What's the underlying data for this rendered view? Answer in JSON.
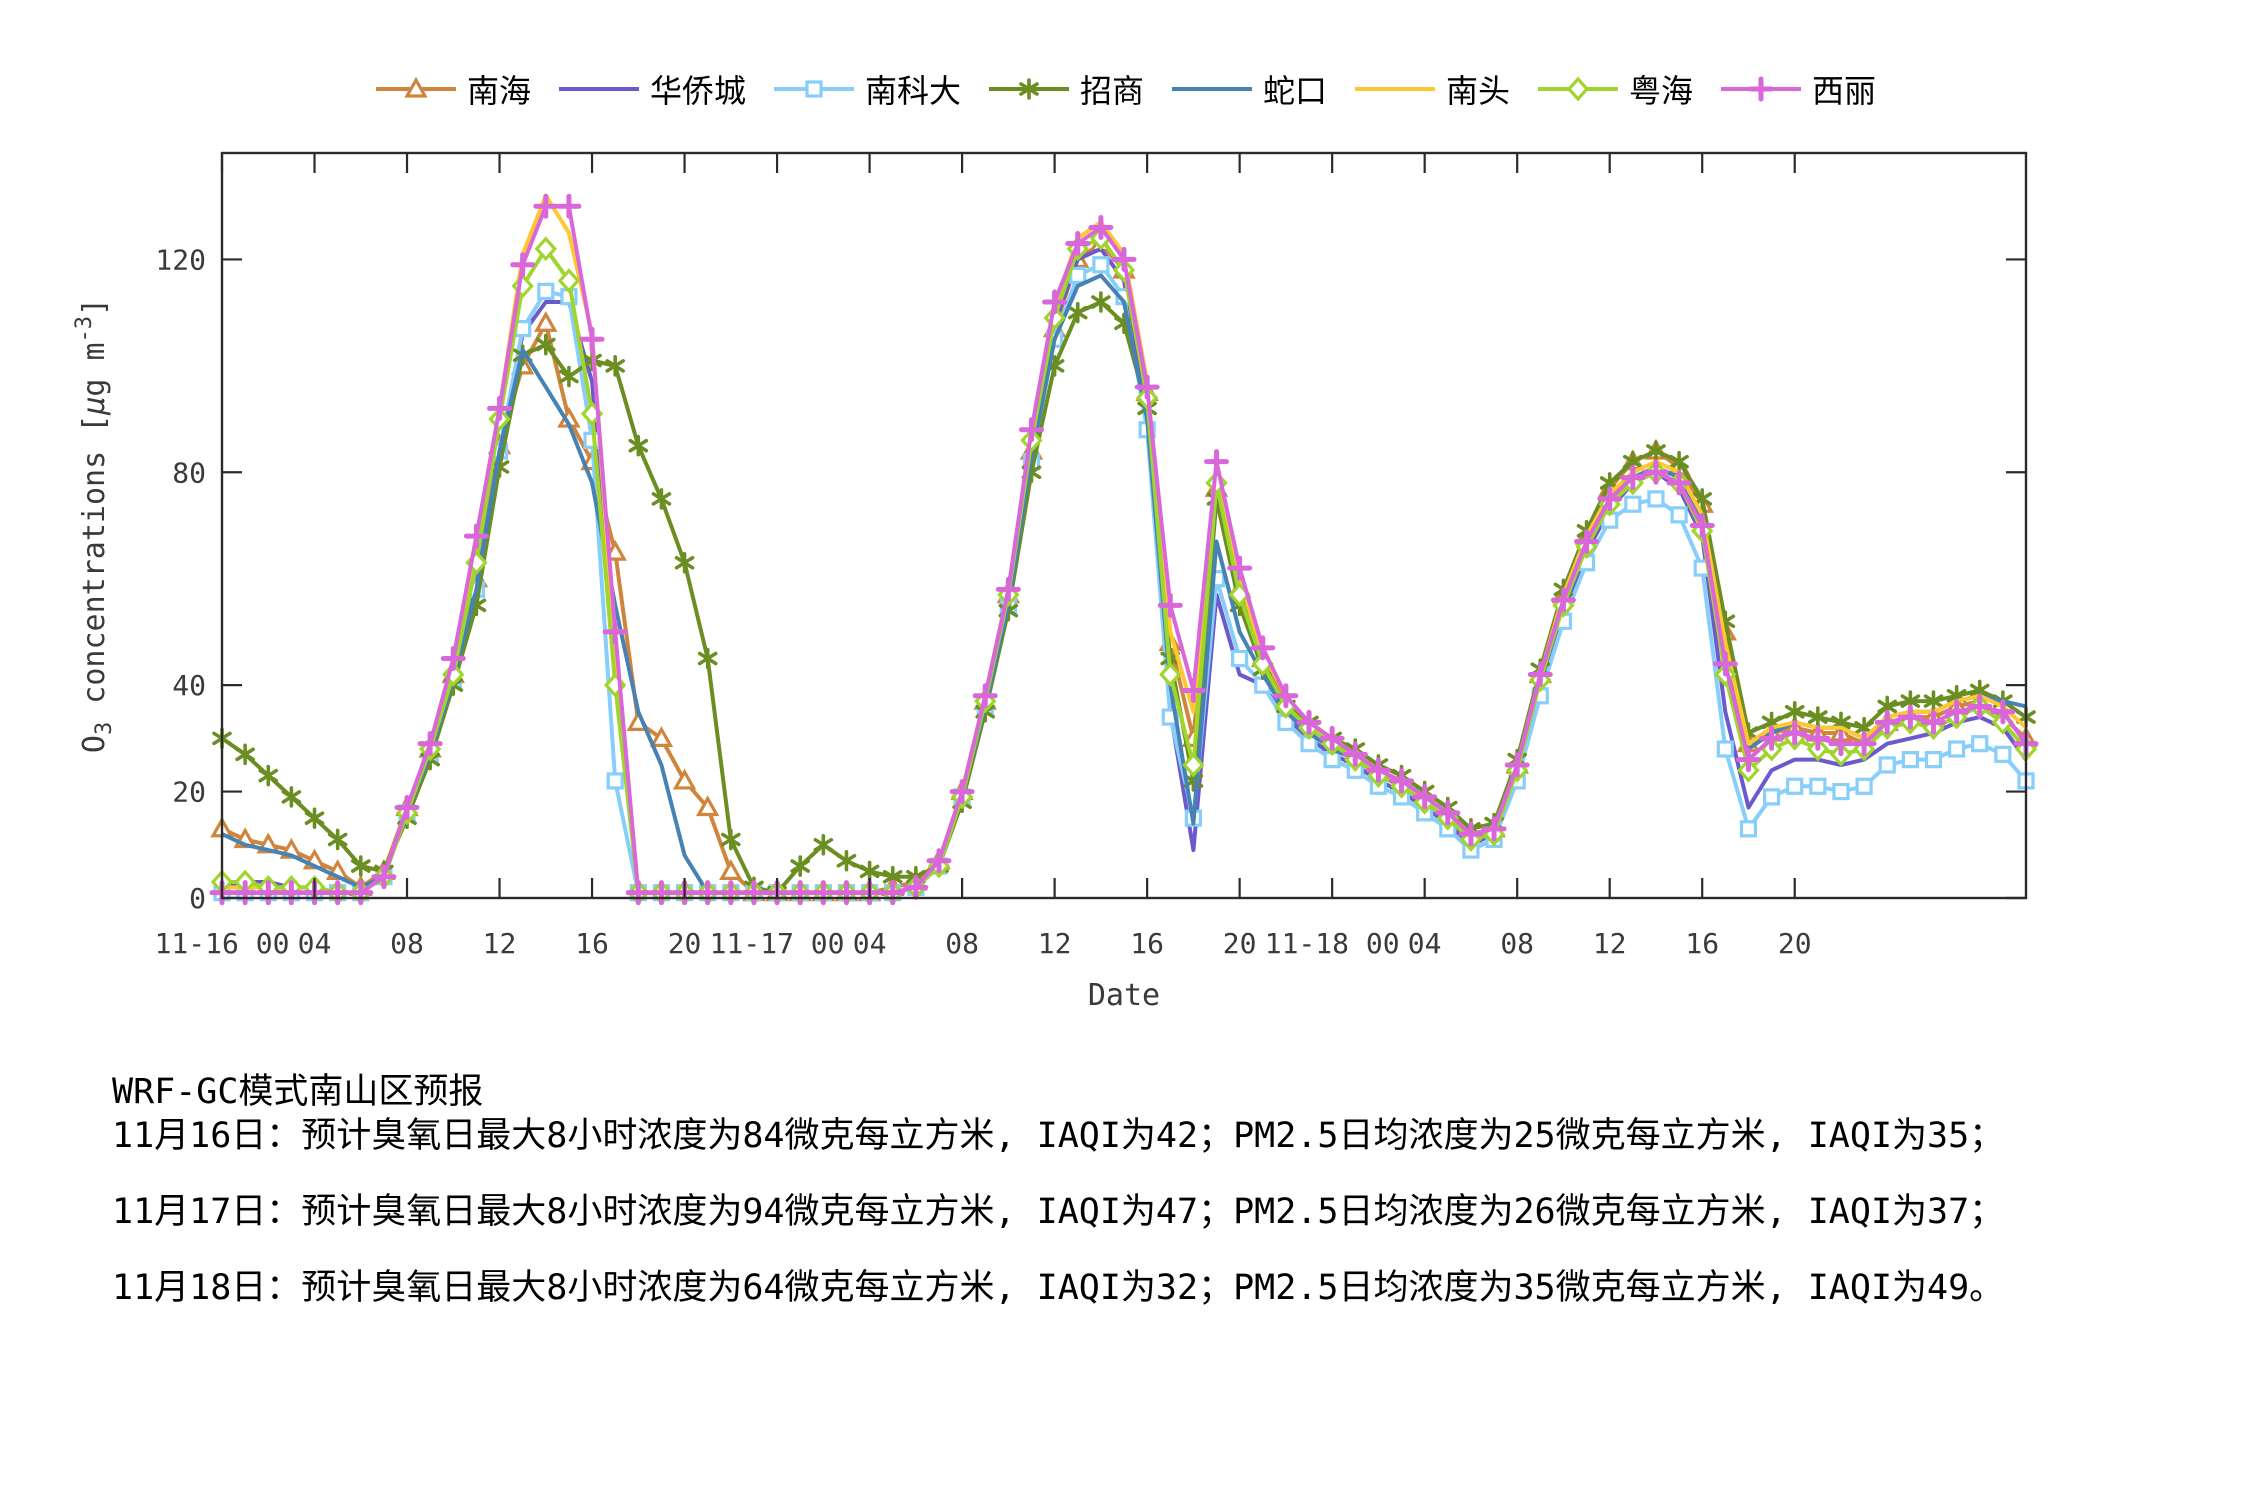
{
  "chart_data": {
    "type": "line",
    "title": "",
    "xlabel": "Date",
    "ylabel": "O3 concentrations [µg m-3]",
    "ylabel_parts": {
      "pre": "O",
      "sub": "3",
      "mid": " concentrations [",
      "mu": "µ",
      "mid2": "g m",
      "sup": "-3",
      "post": "]"
    },
    "x_unit": "hours since 2011-11-16 00:00",
    "x_range": [
      0,
      78
    ],
    "ylim": [
      0,
      140
    ],
    "yticks": [
      0,
      20,
      40,
      80,
      120
    ],
    "grid": false,
    "legend_position": "top-center",
    "marker_every": 1,
    "xticks": [
      {
        "t": 0,
        "label": "11-16 00"
      },
      {
        "t": 4,
        "label": "04"
      },
      {
        "t": 8,
        "label": "08"
      },
      {
        "t": 12,
        "label": "12"
      },
      {
        "t": 16,
        "label": "16"
      },
      {
        "t": 20,
        "label": "20"
      },
      {
        "t": 24,
        "label": "11-17 00"
      },
      {
        "t": 28,
        "label": "04"
      },
      {
        "t": 32,
        "label": "08"
      },
      {
        "t": 36,
        "label": "12"
      },
      {
        "t": 40,
        "label": "16"
      },
      {
        "t": 44,
        "label": "20"
      },
      {
        "t": 48,
        "label": "11-18 00"
      },
      {
        "t": 52,
        "label": "04"
      },
      {
        "t": 56,
        "label": "08"
      },
      {
        "t": 60,
        "label": "12"
      },
      {
        "t": 64,
        "label": "16"
      },
      {
        "t": 68,
        "label": "20"
      }
    ],
    "series": [
      {
        "name": "南海",
        "color": "#D0853C",
        "marker": "triangle",
        "values": [
          13,
          11,
          10,
          9,
          7,
          5,
          2,
          5,
          17,
          28,
          42,
          60,
          85,
          100,
          108,
          90,
          82,
          65,
          33,
          30,
          22,
          17,
          5,
          1,
          1,
          1,
          1,
          1,
          1,
          2,
          3,
          7,
          20,
          37,
          57,
          84,
          107,
          120,
          123,
          118,
          95,
          48,
          30,
          77,
          58,
          45,
          37,
          32,
          29,
          27,
          24,
          22,
          19,
          16,
          12,
          13,
          25,
          42,
          57,
          68,
          77,
          82,
          84,
          81,
          74,
          50,
          29,
          31,
          32,
          31,
          31,
          29,
          33,
          34,
          34,
          36,
          37,
          34,
          30
        ]
      },
      {
        "name": "华侨城",
        "color": "#6A5ACD",
        "marker": "none",
        "values": [
          2,
          3,
          3,
          2,
          2,
          1,
          1,
          4,
          16,
          27,
          41,
          59,
          84,
          106,
          112,
          112,
          97,
          45,
          1,
          1,
          1,
          1,
          1,
          1,
          1,
          1,
          1,
          1,
          1,
          1,
          2,
          6,
          19,
          36,
          56,
          84,
          108,
          120,
          122,
          116,
          90,
          35,
          9,
          57,
          42,
          40,
          34,
          30,
          27,
          25,
          22,
          20,
          17,
          14,
          10,
          12,
          23,
          40,
          54,
          65,
          73,
          78,
          80,
          77,
          68,
          35,
          17,
          24,
          26,
          26,
          25,
          26,
          29,
          30,
          31,
          33,
          34,
          32,
          26
        ]
      },
      {
        "name": "南科大",
        "color": "#87CEFA",
        "marker": "square",
        "values": [
          1,
          1,
          1,
          1,
          1,
          1,
          1,
          4,
          16,
          27,
          41,
          58,
          84,
          107,
          114,
          113,
          86,
          22,
          1,
          1,
          1,
          1,
          1,
          1,
          1,
          1,
          1,
          1,
          1,
          1,
          2,
          6,
          19,
          36,
          55,
          82,
          105,
          117,
          119,
          113,
          88,
          34,
          15,
          60,
          45,
          40,
          33,
          29,
          26,
          24,
          21,
          19,
          16,
          13,
          9,
          11,
          22,
          38,
          52,
          63,
          71,
          74,
          75,
          72,
          62,
          28,
          13,
          19,
          21,
          21,
          20,
          21,
          25,
          26,
          26,
          28,
          29,
          27,
          22
        ]
      },
      {
        "name": "招商",
        "color": "#6B8E23",
        "marker": "asterisk",
        "values": [
          30,
          27,
          23,
          19,
          15,
          11,
          6,
          5,
          15,
          26,
          40,
          55,
          81,
          102,
          104,
          98,
          101,
          100,
          85,
          75,
          63,
          45,
          11,
          2,
          1,
          6,
          10,
          7,
          5,
          4,
          4,
          6,
          18,
          35,
          54,
          80,
          100,
          110,
          112,
          108,
          92,
          45,
          22,
          75,
          55,
          43,
          36,
          33,
          30,
          28,
          25,
          23,
          20,
          17,
          13,
          14,
          26,
          43,
          58,
          69,
          78,
          82,
          84,
          82,
          75,
          52,
          31,
          33,
          35,
          34,
          33,
          32,
          36,
          37,
          37,
          38,
          39,
          37,
          34
        ]
      },
      {
        "name": "蛇口",
        "color": "#4682B4",
        "marker": "none",
        "values": [
          12,
          10,
          9,
          8,
          6,
          4,
          2,
          4,
          16,
          27,
          41,
          58,
          84,
          103,
          96,
          89,
          78,
          55,
          35,
          25,
          8,
          1,
          1,
          1,
          1,
          1,
          1,
          1,
          1,
          1,
          2,
          6,
          19,
          36,
          55,
          83,
          105,
          115,
          117,
          112,
          90,
          40,
          14,
          67,
          50,
          42,
          35,
          31,
          28,
          26,
          23,
          21,
          18,
          15,
          11,
          13,
          25,
          41,
          56,
          67,
          75,
          79,
          81,
          79,
          71,
          46,
          28,
          31,
          33,
          32,
          32,
          30,
          34,
          35,
          35,
          37,
          38,
          37,
          36
        ]
      },
      {
        "name": "南头",
        "color": "#FFC830",
        "marker": "none",
        "values": [
          2,
          2,
          2,
          1,
          1,
          1,
          1,
          4,
          17,
          28,
          43,
          64,
          92,
          121,
          132,
          125,
          106,
          45,
          1,
          1,
          1,
          1,
          1,
          1,
          1,
          1,
          1,
          1,
          1,
          1,
          2,
          7,
          20,
          38,
          58,
          87,
          111,
          124,
          127,
          121,
          97,
          50,
          35,
          80,
          60,
          46,
          38,
          33,
          30,
          27,
          24,
          22,
          19,
          16,
          12,
          13,
          25,
          42,
          57,
          68,
          76,
          80,
          82,
          80,
          72,
          48,
          29,
          32,
          33,
          32,
          32,
          30,
          34,
          35,
          35,
          37,
          38,
          36,
          32
        ]
      },
      {
        "name": "粤海",
        "color": "#A0D52E",
        "marker": "diamond",
        "values": [
          3,
          3,
          2,
          2,
          2,
          1,
          1,
          4,
          16,
          28,
          42,
          63,
          90,
          115,
          122,
          116,
          91,
          40,
          1,
          1,
          1,
          1,
          1,
          1,
          1,
          1,
          1,
          1,
          1,
          1,
          2,
          6,
          19,
          37,
          57,
          86,
          109,
          122,
          124,
          118,
          94,
          42,
          25,
          78,
          57,
          44,
          36,
          32,
          29,
          26,
          23,
          21,
          18,
          15,
          11,
          12,
          24,
          41,
          55,
          66,
          74,
          78,
          80,
          78,
          69,
          42,
          24,
          28,
          30,
          28,
          27,
          28,
          32,
          33,
          32,
          34,
          36,
          33,
          28
        ]
      },
      {
        "name": "西丽",
        "color": "#D967D9",
        "marker": "plus",
        "values": [
          1,
          1,
          1,
          1,
          1,
          1,
          1,
          4,
          17,
          29,
          45,
          68,
          92,
          119,
          130,
          130,
          105,
          50,
          1,
          1,
          1,
          1,
          1,
          1,
          1,
          1,
          1,
          1,
          1,
          1,
          2,
          7,
          20,
          38,
          58,
          88,
          112,
          123,
          126,
          120,
          96,
          55,
          39,
          82,
          62,
          47,
          38,
          33,
          30,
          27,
          24,
          22,
          19,
          16,
          12,
          13,
          25,
          42,
          56,
          67,
          75,
          79,
          80,
          78,
          70,
          44,
          26,
          30,
          31,
          30,
          29,
          29,
          33,
          34,
          33,
          35,
          36,
          35,
          29
        ]
      }
    ]
  },
  "forecast": {
    "title": "WRF-GC模式南山区预报",
    "lines": [
      "11月16日：预计臭氧日最大8小时浓度为84微克每立方米, IAQI为42；PM2.5日均浓度为25微克每立方米, IAQI为35；",
      "11月17日：预计臭氧日最大8小时浓度为94微克每立方米, IAQI为47；PM2.5日均浓度为26微克每立方米, IAQI为37；",
      "11月18日：预计臭氧日最大8小时浓度为64微克每立方米, IAQI为32；PM2.5日均浓度为35微克每立方米, IAQI为49。"
    ]
  }
}
